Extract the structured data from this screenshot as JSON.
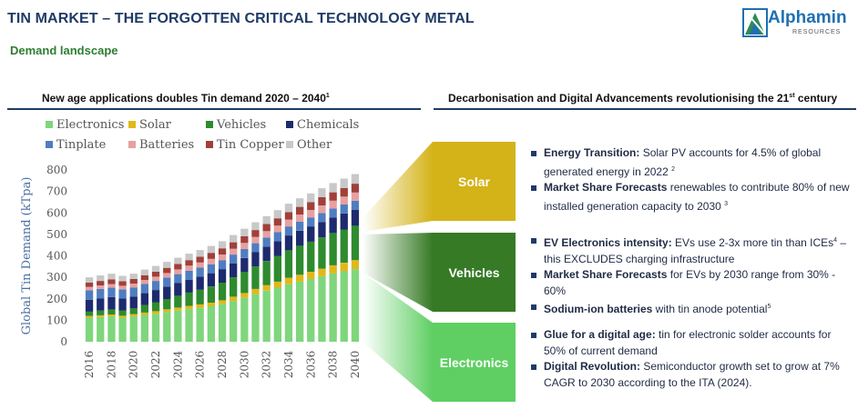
{
  "header": {
    "title": "TIN MARKET – THE FORGOTTEN CRITICAL TECHNOLOGY METAL",
    "subtitle": "Demand landscape",
    "logo_name": "Alphamin",
    "logo_sub": "RESOURCES"
  },
  "left_panel": {
    "heading": "New age applications doubles Tin demand 2020 – 2040",
    "heading_sup": "1"
  },
  "right_panel": {
    "heading": "Decarbonisation and Digital Advancements revolutionising the 21",
    "heading_sup": "st",
    "heading_tail": " century"
  },
  "segments": [
    {
      "label": "Solar",
      "color": "#d4b319",
      "bullets": [
        {
          "bold": "Energy Transition:",
          "text": " Solar PV accounts for 4.5% of global generated energy in 2022 ",
          "sup": "2"
        },
        {
          "bold": "Market Share Forecasts",
          "text": " renewables to contribute 80% of new installed generation capacity to 2030 ",
          "sup": "3"
        }
      ]
    },
    {
      "label": "Vehicles",
      "color": "#367a25",
      "bullets": [
        {
          "bold": "EV Electronics intensity:",
          "text": " EVs use 2-3x more tin than ICEs",
          "sup": "4",
          "tail": " – this EXCLUDES charging infrastructure"
        },
        {
          "bold": "Market Share Forecasts",
          "text": " for EVs by 2030 range from 30% - 60%"
        },
        {
          "bold": "Sodium-ion batteries",
          "text": " with tin anode potential",
          "sup": "5"
        }
      ]
    },
    {
      "label": "Electronics",
      "color": "#5fcf63",
      "bullets": [
        {
          "bold": "Glue for a digital age:",
          "text": " tin for electronic solder accounts for 50% of current demand"
        },
        {
          "bold": "Digital Revolution:",
          "text": " Semiconductor growth set to grow at 7% CAGR to 2030 according to the ITA (2024)."
        }
      ]
    }
  ],
  "chart_data": {
    "type": "bar",
    "stacked": true,
    "ylabel": "Global Tin Demand (kTpa)",
    "xlabel": "",
    "ylim": [
      0,
      800
    ],
    "yticks": [
      0,
      100,
      200,
      300,
      400,
      500,
      600,
      700,
      800
    ],
    "categories": [
      "2016",
      "2017",
      "2018",
      "2019",
      "2020",
      "2021",
      "2022",
      "2023",
      "2024",
      "2025",
      "2026",
      "2027",
      "2028",
      "2029",
      "2030",
      "2031",
      "2032",
      "2033",
      "2034",
      "2035",
      "2036",
      "2037",
      "2038",
      "2039",
      "2040"
    ],
    "x_tick_labels": [
      "2016",
      "2018",
      "2020",
      "2022",
      "2024",
      "2026",
      "2028",
      "2030",
      "2032",
      "2034",
      "2036",
      "2038",
      "2040"
    ],
    "legend": "top",
    "series": [
      {
        "name": "Electronics",
        "color": "#7fd67c",
        "values": [
          112,
          115,
          118,
          112,
          118,
          125,
          130,
          138,
          145,
          152,
          158,
          165,
          175,
          190,
          205,
          222,
          238,
          252,
          268,
          280,
          292,
          305,
          318,
          328,
          338
        ]
      },
      {
        "name": "Solar",
        "color": "#e0b81a",
        "values": [
          8,
          8,
          9,
          9,
          10,
          11,
          12,
          13,
          14,
          15,
          16,
          17,
          18,
          20,
          22,
          24,
          26,
          28,
          30,
          32,
          34,
          36,
          38,
          40,
          42
        ]
      },
      {
        "name": "Vehicles",
        "color": "#2e8b2e",
        "values": [
          20,
          22,
          24,
          25,
          28,
          35,
          42,
          48,
          55,
          62,
          68,
          75,
          82,
          90,
          98,
          105,
          112,
          120,
          128,
          135,
          140,
          145,
          150,
          155,
          160
        ]
      },
      {
        "name": "Chemicals",
        "color": "#1e2a6e",
        "values": [
          55,
          56,
          57,
          55,
          55,
          56,
          57,
          58,
          59,
          60,
          61,
          62,
          63,
          64,
          65,
          66,
          67,
          68,
          69,
          70,
          71,
          72,
          73,
          74,
          75
        ]
      },
      {
        "name": "Tinplate",
        "color": "#4f7ec0",
        "values": [
          45,
          45,
          44,
          43,
          42,
          42,
          42,
          42,
          42,
          42,
          42,
          42,
          42,
          42,
          42,
          42,
          42,
          42,
          42,
          42,
          42,
          42,
          42,
          42,
          42
        ]
      },
      {
        "name": "Batteries",
        "color": "#e8a0a0",
        "values": [
          15,
          16,
          17,
          17,
          18,
          19,
          20,
          21,
          22,
          23,
          24,
          25,
          26,
          27,
          28,
          29,
          30,
          31,
          32,
          33,
          34,
          35,
          36,
          37,
          38
        ]
      },
      {
        "name": "Tin Copper",
        "color": "#a0403a",
        "values": [
          20,
          21,
          22,
          21,
          21,
          22,
          23,
          24,
          25,
          26,
          27,
          28,
          29,
          30,
          31,
          32,
          33,
          34,
          35,
          36,
          37,
          38,
          39,
          40,
          41
        ]
      },
      {
        "name": "Other",
        "color": "#c8c8c8",
        "values": [
          25,
          26,
          26,
          25,
          25,
          26,
          27,
          28,
          29,
          30,
          31,
          32,
          33,
          34,
          35,
          36,
          37,
          38,
          39,
          40,
          41,
          42,
          43,
          44,
          45
        ]
      }
    ]
  }
}
